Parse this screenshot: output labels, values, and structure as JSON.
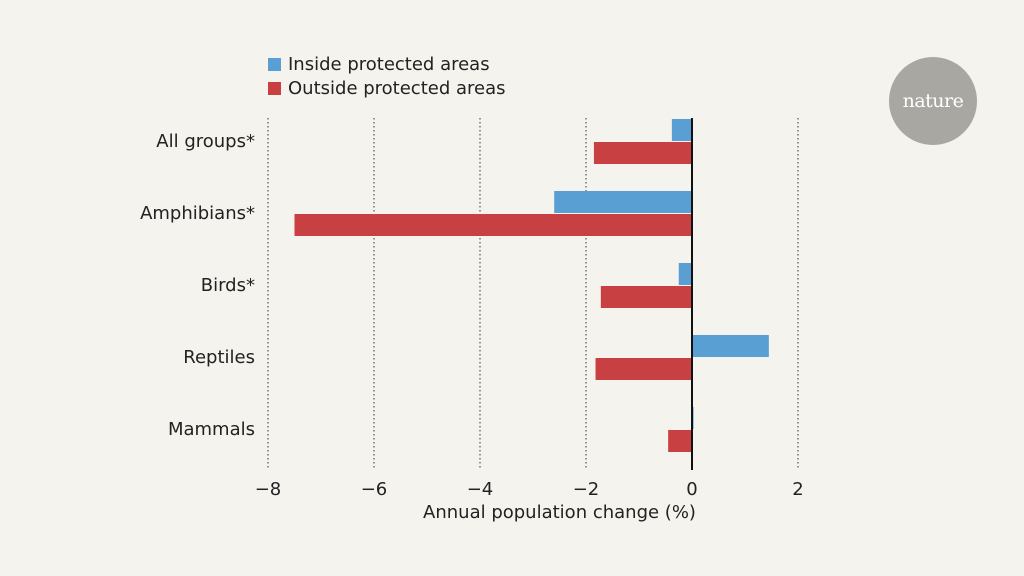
{
  "colors": {
    "inside": "#5a9fd4",
    "outside": "#c94043",
    "background": "#f5f3ed",
    "axis": "#111111",
    "grid": "#333333",
    "logo_bg": "#a8a7a2"
  },
  "legend": {
    "items": [
      {
        "label": "Inside protected areas",
        "color_key": "inside"
      },
      {
        "label": "Outside protected areas",
        "color_key": "outside"
      }
    ]
  },
  "logo": {
    "text": "nature"
  },
  "chart_data": {
    "type": "bar",
    "orientation": "horizontal",
    "title": "",
    "xlabel": "Annual population change (%)",
    "ylabel": "",
    "xlim": [
      -8,
      2
    ],
    "xticks": [
      -8,
      -6,
      -4,
      -2,
      0,
      2
    ],
    "xtick_labels": [
      "−8",
      "−6",
      "−4",
      "−2",
      "0",
      "2"
    ],
    "grid": "vertical dotted",
    "legend_position": "top-left",
    "categories": [
      "All groups*",
      "Amphibians*",
      "Birds*",
      "Reptiles",
      "Mammals"
    ],
    "series": [
      {
        "name": "Inside protected areas",
        "color_key": "inside",
        "values": [
          -0.38,
          -2.6,
          -0.25,
          1.45,
          0.03
        ]
      },
      {
        "name": "Outside protected areas",
        "color_key": "outside",
        "values": [
          -1.85,
          -7.5,
          -1.72,
          -1.82,
          -0.45
        ]
      }
    ]
  }
}
